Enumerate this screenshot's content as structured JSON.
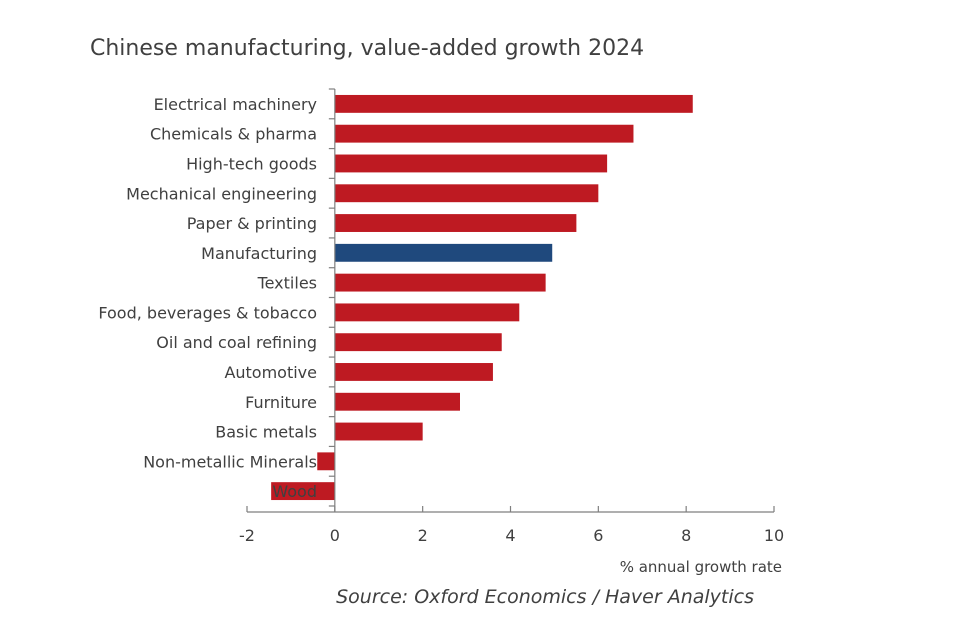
{
  "chart_data": {
    "type": "bar",
    "orientation": "horizontal",
    "title": "Chinese manufacturing, value-added growth 2024",
    "xlabel": "% annual growth rate",
    "ylabel": "",
    "source": "Source: Oxford Economics / Haver Analytics",
    "xlim": [
      -2,
      10
    ],
    "xticks": [
      -2,
      0,
      2,
      4,
      6,
      8,
      10
    ],
    "xtick_labels": [
      "-2",
      "0",
      "2",
      "4",
      "6",
      "8",
      "10"
    ],
    "grid": false,
    "legend": "none",
    "categories": [
      "Electrical machinery",
      "Chemicals & pharma",
      "High-tech goods",
      "Mechanical engineering",
      "Paper & printing",
      "Manufacturing",
      "Textiles",
      "Food, beverages & tobacco",
      "Oil and coal refining",
      "Automotive",
      "Furniture",
      "Basic metals",
      "Non-metallic Minerals",
      "Wood"
    ],
    "values": [
      8.15,
      6.8,
      6.2,
      6.0,
      5.5,
      4.95,
      4.8,
      4.2,
      3.8,
      3.6,
      2.85,
      2.0,
      -0.4,
      -1.45
    ],
    "highlight_category": "Manufacturing",
    "colors": {
      "default_bar": "#be1a22",
      "highlight_bar": "#1f497d",
      "text": "#404040",
      "axis": "#7f7f7f"
    }
  }
}
